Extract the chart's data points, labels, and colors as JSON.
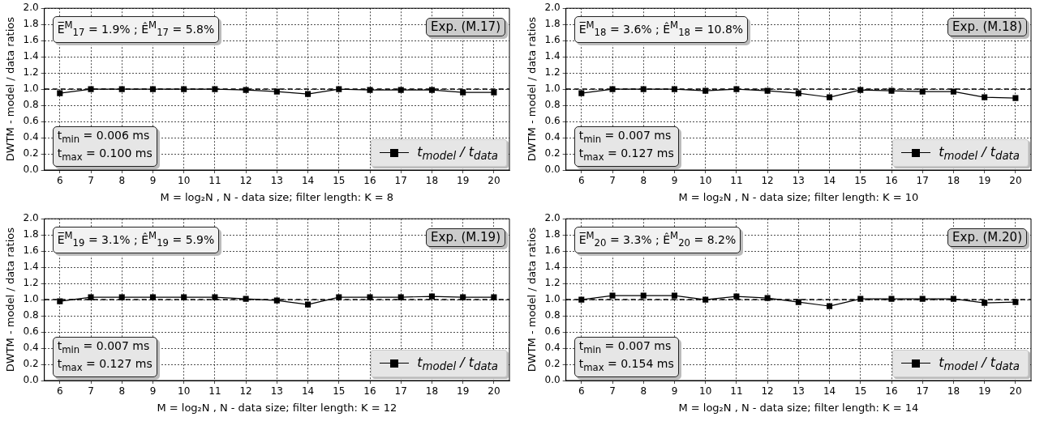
{
  "chart_data": [
    {
      "type": "line",
      "xlabel": "M = log₂N , N - data size; filter length: K = 8",
      "ylabel": "DWTM - model / data ratios",
      "categories": [
        "6",
        "7",
        "8",
        "9",
        "10",
        "11",
        "12",
        "13",
        "14",
        "15",
        "16",
        "17",
        "18",
        "19",
        "20"
      ],
      "series": [
        {
          "name": "t$_{model}$ / t$_{data}$",
          "color": "#000000",
          "values": [
            0.95,
            1.0,
            1.0,
            1.0,
            1.0,
            1.0,
            0.99,
            0.97,
            0.94,
            1.0,
            0.99,
            0.99,
            0.99,
            0.96,
            0.96
          ]
        }
      ],
      "ylim": [
        0,
        2
      ],
      "yticks": [
        {
          "value": 0,
          "label": "0.0"
        },
        {
          "value": 0.2,
          "label": "0.2"
        },
        {
          "value": 0.4,
          "label": "0.4"
        },
        {
          "value": 0.6,
          "label": "0.6"
        },
        {
          "value": 0.8,
          "label": "0.8"
        },
        {
          "value": 1,
          "label": "1.0"
        },
        {
          "value": 1.2,
          "label": "1.2"
        },
        {
          "value": 1.4,
          "label": "1.4"
        },
        {
          "value": 1.6,
          "label": "1.6"
        },
        {
          "value": 1.8,
          "label": "1.8"
        },
        {
          "value": 2,
          "label": "2.0"
        }
      ],
      "ref_lines": [
        {
          "axis": "y",
          "value": 1,
          "line_style": "dashed",
          "color": "#000000"
        }
      ],
      "annotations": [
        "E̅$^{M}$$_{17}$ = 1.9% ;  Ê$^{M}$$_{17}$ = 5.8%",
        "Exp. (M.17)",
        "t$_{min}$ = 0.006 ms",
        "t$_{max}$ = 0.100 ms"
      ],
      "grid": true,
      "legend": "bottom right",
      "marker": "square",
      "line_style": "solid"
    },
    {
      "type": "line",
      "xlabel": "M = log₂N , N - data size; filter length: K = 10",
      "ylabel": "DWTM - model / data ratios",
      "categories": [
        "6",
        "7",
        "8",
        "9",
        "10",
        "11",
        "12",
        "13",
        "14",
        "15",
        "16",
        "17",
        "18",
        "19",
        "20"
      ],
      "series": [
        {
          "name": "t$_{model}$ / t$_{data}$",
          "color": "#000000",
          "values": [
            0.95,
            1.0,
            1.0,
            1.0,
            0.98,
            1.0,
            0.98,
            0.95,
            0.9,
            0.99,
            0.98,
            0.97,
            0.97,
            0.9,
            0.89
          ]
        }
      ],
      "ylim": [
        0,
        2
      ],
      "yticks": [
        {
          "value": 0,
          "label": "0.0"
        },
        {
          "value": 0.2,
          "label": "0.2"
        },
        {
          "value": 0.4,
          "label": "0.4"
        },
        {
          "value": 0.6,
          "label": "0.6"
        },
        {
          "value": 0.8,
          "label": "0.8"
        },
        {
          "value": 1,
          "label": "1.0"
        },
        {
          "value": 1.2,
          "label": "1.2"
        },
        {
          "value": 1.4,
          "label": "1.4"
        },
        {
          "value": 1.6,
          "label": "1.6"
        },
        {
          "value": 1.8,
          "label": "1.8"
        },
        {
          "value": 2,
          "label": "2.0"
        }
      ],
      "ref_lines": [
        {
          "axis": "y",
          "value": 1,
          "line_style": "dashed",
          "color": "#000000"
        }
      ],
      "annotations": [
        "E̅$^{M}$$_{18}$ = 3.6% ;  Ê$^{M}$$_{18}$ = 10.8%",
        "Exp. (M.18)",
        "t$_{min}$ = 0.007 ms",
        "t$_{max}$ = 0.127 ms"
      ],
      "grid": true,
      "legend": "bottom right",
      "marker": "square",
      "line_style": "solid"
    },
    {
      "type": "line",
      "xlabel": "M = log₂N , N - data size; filter length: K = 12",
      "ylabel": "DWTM - model / data ratios",
      "categories": [
        "6",
        "7",
        "8",
        "9",
        "10",
        "11",
        "12",
        "13",
        "14",
        "15",
        "16",
        "17",
        "18",
        "19",
        "20"
      ],
      "series": [
        {
          "name": "t$_{model}$ / t$_{data}$",
          "color": "#000000",
          "values": [
            0.98,
            1.03,
            1.03,
            1.03,
            1.03,
            1.03,
            1.01,
            0.99,
            0.94,
            1.03,
            1.03,
            1.03,
            1.04,
            1.03,
            1.03
          ]
        }
      ],
      "ylim": [
        0,
        2
      ],
      "yticks": [
        {
          "value": 0,
          "label": "0.0"
        },
        {
          "value": 0.2,
          "label": "0.2"
        },
        {
          "value": 0.4,
          "label": "0.4"
        },
        {
          "value": 0.6,
          "label": "0.6"
        },
        {
          "value": 0.8,
          "label": "0.8"
        },
        {
          "value": 1,
          "label": "1.0"
        },
        {
          "value": 1.2,
          "label": "1.2"
        },
        {
          "value": 1.4,
          "label": "1.4"
        },
        {
          "value": 1.6,
          "label": "1.6"
        },
        {
          "value": 1.8,
          "label": "1.8"
        },
        {
          "value": 2,
          "label": "2.0"
        }
      ],
      "ref_lines": [
        {
          "axis": "y",
          "value": 1,
          "line_style": "dashed",
          "color": "#000000"
        }
      ],
      "annotations": [
        "E̅$^{M}$$_{19}$ = 3.1% ;  Ê$^{M}$$_{19}$ = 5.9%",
        "Exp. (M.19)",
        "t$_{min}$ = 0.007 ms",
        "t$_{max}$ = 0.127 ms"
      ],
      "grid": true,
      "legend": "bottom right",
      "marker": "square",
      "line_style": "solid"
    },
    {
      "type": "line",
      "xlabel": "M = log₂N , N - data size; filter length: K = 14",
      "ylabel": "DWTM - model / data ratios",
      "categories": [
        "6",
        "7",
        "8",
        "9",
        "10",
        "11",
        "12",
        "13",
        "14",
        "15",
        "16",
        "17",
        "18",
        "19",
        "20"
      ],
      "series": [
        {
          "name": "t$_{model}$ / t$_{data}$",
          "color": "#000000",
          "values": [
            1.0,
            1.05,
            1.05,
            1.05,
            1.0,
            1.04,
            1.02,
            0.97,
            0.92,
            1.01,
            1.01,
            1.01,
            1.01,
            0.96,
            0.97
          ]
        }
      ],
      "ylim": [
        0,
        2
      ],
      "yticks": [
        {
          "value": 0,
          "label": "0.0"
        },
        {
          "value": 0.2,
          "label": "0.2"
        },
        {
          "value": 0.4,
          "label": "0.4"
        },
        {
          "value": 0.6,
          "label": "0.6"
        },
        {
          "value": 0.8,
          "label": "0.8"
        },
        {
          "value": 1,
          "label": "1.0"
        },
        {
          "value": 1.2,
          "label": "1.2"
        },
        {
          "value": 1.4,
          "label": "1.4"
        },
        {
          "value": 1.6,
          "label": "1.6"
        },
        {
          "value": 1.8,
          "label": "1.8"
        },
        {
          "value": 2,
          "label": "2.0"
        }
      ],
      "ref_lines": [
        {
          "axis": "y",
          "value": 1,
          "line_style": "dashed",
          "color": "#000000"
        }
      ],
      "annotations": [
        "E̅$^{M}$$_{20}$ = 3.3% ;  Ê$^{M}$$_{20}$ = 8.2%",
        "Exp. (M.20)",
        "t$_{min}$ = 0.007 ms",
        "t$_{max}$ = 0.154 ms"
      ],
      "grid": true,
      "legend": "bottom right",
      "marker": "square",
      "line_style": "solid"
    }
  ]
}
